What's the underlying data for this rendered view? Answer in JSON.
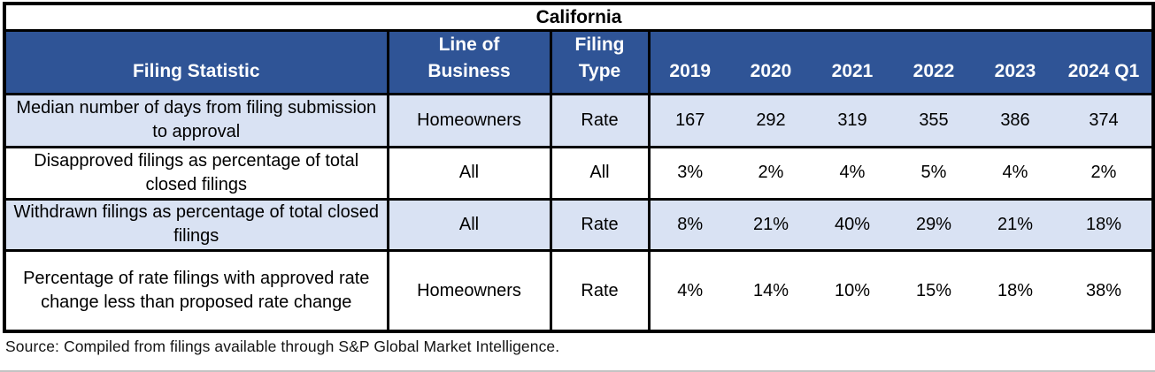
{
  "title": "California",
  "columns": {
    "filing_statistic": "Filing Statistic",
    "line_of_business": "Line of\nBusiness",
    "filing_type": "Filing\nType",
    "years": [
      "2019",
      "2020",
      "2021",
      "2022",
      "2023",
      "2024 Q1"
    ]
  },
  "rows": [
    {
      "statistic": "Median number of days from filing submission to approval",
      "line_of_business": "Homeowners",
      "filing_type": "Rate",
      "values": [
        "167",
        "292",
        "319",
        "355",
        "386",
        "374"
      ]
    },
    {
      "statistic": "Disapproved filings as percentage of total closed filings",
      "line_of_business": "All",
      "filing_type": "All",
      "values": [
        "3%",
        "2%",
        "4%",
        "5%",
        "4%",
        "2%"
      ]
    },
    {
      "statistic": "Withdrawn filings as percentage of total closed filings",
      "line_of_business": "All",
      "filing_type": "Rate",
      "values": [
        "8%",
        "21%",
        "40%",
        "29%",
        "21%",
        "18%"
      ]
    },
    {
      "statistic": "Percentage of rate filings with approved rate change less than proposed rate change",
      "line_of_business": "Homeowners",
      "filing_type": "Rate",
      "values": [
        "4%",
        "14%",
        "10%",
        "15%",
        "18%",
        "38%"
      ]
    }
  ],
  "source": "Source: Compiled from filings available through S&P Global Market Intelligence.",
  "colors": {
    "header_bg": "#2F5496",
    "header_text": "#FFFFFF",
    "row_alt_bg": "#D9E2F3",
    "row_bg": "#FFFFFF",
    "border": "#000000",
    "source_text": "#141414",
    "hairline": "#C3C3C3"
  }
}
